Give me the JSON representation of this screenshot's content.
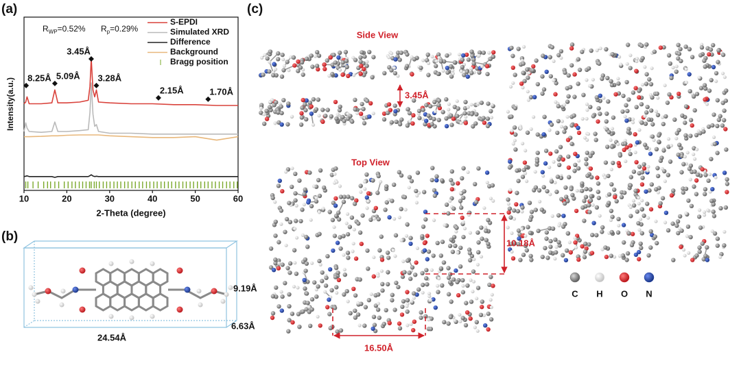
{
  "panel_labels": [
    "(a)",
    "(b)",
    "(c)"
  ],
  "chart_data": {
    "type": "line",
    "xlabel": "2-Theta (degree)",
    "ylabel": "Intensity(a.u.)",
    "xlim": [
      10,
      60
    ],
    "xticks": [
      10,
      20,
      30,
      40,
      50,
      60
    ],
    "ylim": [
      0,
      100
    ],
    "fit_stats": [
      {
        "symbol": "R",
        "subscript": "WP",
        "value": "=0.52%"
      },
      {
        "symbol": "R",
        "subscript": "p",
        "value": "=0.29%"
      }
    ],
    "x": [
      10,
      10.4,
      10.7,
      11.2,
      14,
      16.5,
      17.2,
      17.9,
      20,
      23,
      25,
      25.4,
      25.7,
      26.1,
      26.5,
      26.9,
      27.4,
      30,
      35,
      40,
      45,
      50,
      55,
      60
    ],
    "series": [
      {
        "name": "S-EPDI",
        "color": "#d9413a",
        "values": [
          50,
          51,
          54,
          50,
          50,
          50.5,
          58,
          50.5,
          50.5,
          51,
          52,
          60,
          76,
          58,
          54,
          58,
          51,
          50.5,
          50,
          50,
          49.5,
          49.5,
          49,
          49
        ]
      },
      {
        "name": "Simulated XRD",
        "color": "#b9b9b9",
        "values": [
          34,
          39,
          36,
          34,
          33.5,
          34,
          39.5,
          34,
          34,
          34.5,
          35,
          45,
          62,
          44,
          37,
          38,
          34,
          33,
          33,
          32.5,
          32.5,
          32.5,
          32.5,
          32.5
        ]
      },
      {
        "name": "Difference",
        "color": "#222222",
        "values": [
          8,
          8.2,
          8.4,
          8,
          8,
          8,
          7.5,
          8,
          8,
          8,
          8,
          8.5,
          9,
          8.3,
          8,
          8.2,
          8,
          8,
          8,
          8,
          8,
          8,
          8,
          8
        ]
      },
      {
        "name": "Background",
        "color": "#e8b77a",
        "values": [
          31,
          31,
          31,
          31,
          31.2,
          31.5,
          31.5,
          31.5,
          31.8,
          32,
          32,
          32,
          32,
          32,
          32,
          32,
          32,
          31.5,
          31,
          30.5,
          30.5,
          31,
          29,
          31
        ]
      }
    ],
    "bragg": {
      "name": "Bragg position",
      "color": "#7aa82a",
      "positions": [
        10.4,
        10.9,
        12.1,
        13.3,
        14.6,
        15.5,
        16.2,
        17.2,
        18.1,
        19.4,
        20.3,
        21.2,
        22.0,
        22.9,
        23.7,
        24.5,
        25.3,
        25.7,
        26.4,
        26.9,
        27.6,
        28.5,
        29.3,
        30.1,
        31.0,
        31.8,
        32.6,
        33.5,
        34.3,
        35.2,
        36.0,
        36.9,
        37.7,
        38.6,
        39.4,
        40.3,
        41.1,
        42.0,
        42.8,
        43.7,
        44.5,
        45.4,
        46.2,
        47.1,
        47.9,
        48.8,
        49.6,
        50.5,
        51.3,
        52.2,
        53.0,
        53.9,
        54.7,
        55.6,
        56.4,
        57.3,
        58.1,
        59.0,
        59.8
      ]
    },
    "annotations": [
      {
        "text": "8.25Å",
        "x": 10.5,
        "y": 60.5
      },
      {
        "text": "5.09Å",
        "x": 17.2,
        "y": 61.7
      },
      {
        "text": "3.45Å",
        "x": 25.7,
        "y": 75.9
      },
      {
        "text": "3.28Å",
        "x": 26.9,
        "y": 60.5
      },
      {
        "text": "2.15Å",
        "x": 41.4,
        "y": 53.4
      },
      {
        "text": "1.70Å",
        "x": 53.0,
        "y": 52.6
      }
    ]
  },
  "panel_b": {
    "dimensions": [
      "24.54Å",
      "9.19Å",
      "6.63Å"
    ]
  },
  "panel_c": {
    "side_view": "Side View",
    "side_spacing": "3.45Å",
    "top_view": "Top View",
    "top_spacing_vertical": "10.18Å",
    "top_spacing_horizontal": "16.50Å",
    "atoms": [
      {
        "label": "C",
        "color": "#6e6e6e"
      },
      {
        "label": "H",
        "color": "#f2f2f2"
      },
      {
        "label": "O",
        "color": "#d01f24"
      },
      {
        "label": "N",
        "color": "#1f3fa0"
      }
    ]
  }
}
